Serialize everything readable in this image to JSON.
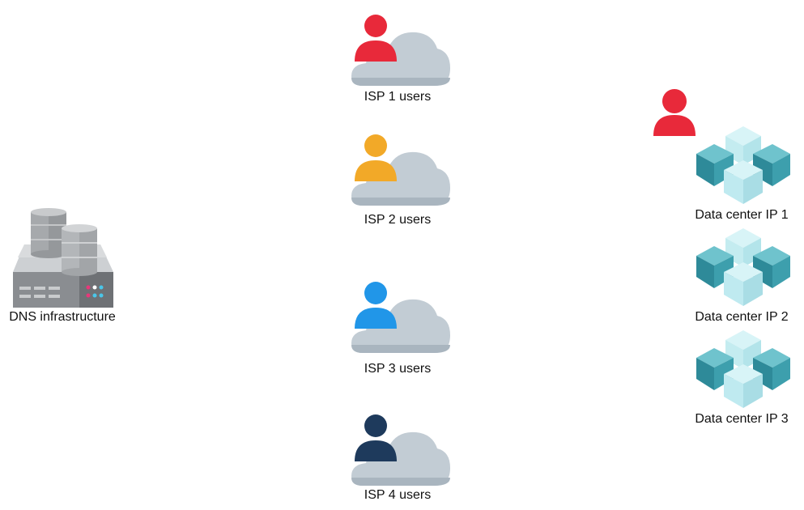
{
  "dns": {
    "label": "DNS infrastructure",
    "icon": "database-server-icon"
  },
  "isp_groups": [
    {
      "label": "ISP 1 users",
      "user_color": "#e8293a",
      "icon": "user-cloud-icon"
    },
    {
      "label": "ISP 2 users",
      "user_color": "#f2a928",
      "icon": "user-cloud-icon"
    },
    {
      "label": "ISP 3 users",
      "user_color": "#2196e8",
      "icon": "user-cloud-icon"
    },
    {
      "label": "ISP 4 users",
      "user_color": "#1e3a5c",
      "icon": "user-cloud-icon"
    }
  ],
  "data_centers": [
    {
      "label": "Data center IP 1",
      "icon": "cubes-icon"
    },
    {
      "label": "Data center IP 2",
      "icon": "cubes-icon"
    },
    {
      "label": "Data center IP 3",
      "icon": "cubes-icon"
    }
  ],
  "dc_user": {
    "color": "#e8293a",
    "icon": "user-icon"
  },
  "colors": {
    "cloud": "#c2ccd4",
    "cloud_shadow": "#a9b5bf",
    "cube_dark": "#2e8a99",
    "cube_mid": "#45a7b4",
    "cube_light": "#b5eaef",
    "server_body": "#8a8d91",
    "server_top": "#d4d6d8"
  }
}
